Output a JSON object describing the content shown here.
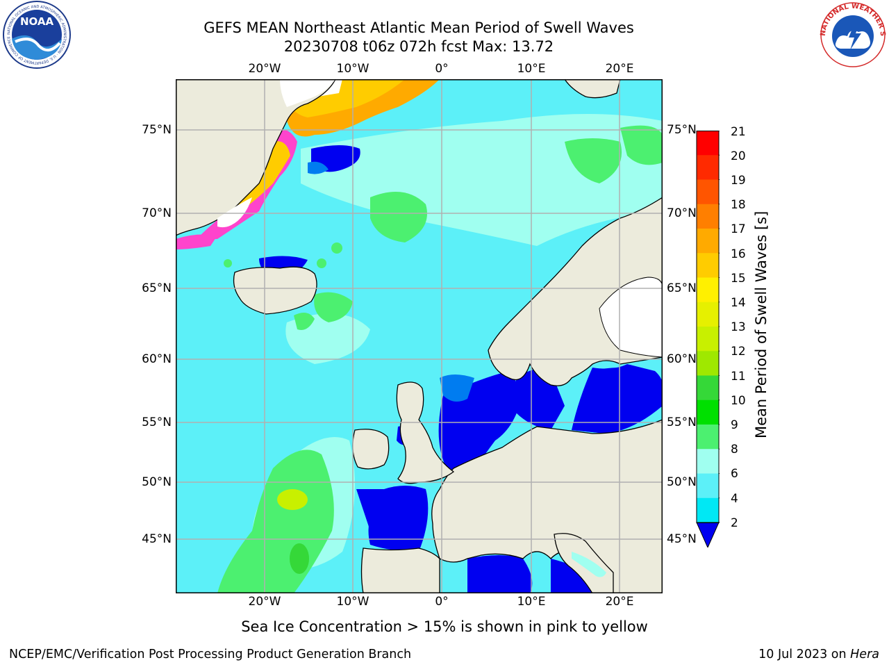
{
  "title": {
    "line1": "GEFS MEAN Northeast Atlantic Mean Period of Swell Waves",
    "line2": "20230708 t06z 072h fcst   Max: 13.72"
  },
  "logos": {
    "left_name": "NOAA",
    "left_ring": "NATIONAL OCEANIC AND ATMOSPHERIC ADMINISTRATION · U.S. DEPARTMENT OF COMMERCE",
    "right_ring": "NATIONAL WEATHER SERVICE"
  },
  "map": {
    "lon_labels": [
      "20°W",
      "10°W",
      "0°",
      "10°E",
      "20°E"
    ],
    "lat_labels": [
      "75°N",
      "70°N",
      "65°N",
      "60°N",
      "55°N",
      "50°N",
      "45°N"
    ],
    "grid": true,
    "colors": {
      "land": "#ecebdc",
      "open_ocean": "#5cf0f8",
      "grid": "#b0b0b0"
    }
  },
  "colorbar": {
    "label": "Mean Period of Swell Waves [s]",
    "ticks": [
      "21",
      "20",
      "19",
      "18",
      "17",
      "16",
      "15",
      "14",
      "13",
      "12",
      "11",
      "10",
      "9",
      "8",
      "6",
      "4",
      "2"
    ],
    "colors": [
      "#ff0000",
      "#ff2a00",
      "#ff5500",
      "#ff7f00",
      "#ffaa00",
      "#ffcc00",
      "#fff000",
      "#e6f000",
      "#c8f000",
      "#9fe800",
      "#35d838",
      "#00e000",
      "#4cf070",
      "#a0fff0",
      "#5cf0f8",
      "#00e8f4",
      "#007cf0",
      "#0000f0"
    ],
    "extend": "min"
  },
  "note": "Sea Ice Concentration > 15% is shown in pink to yellow",
  "footer": {
    "left": "NCEP/EMC/Verification Post Processing Product Generation Branch",
    "right_date": "10 Jul 2023 on ",
    "right_machine": "Hera"
  }
}
